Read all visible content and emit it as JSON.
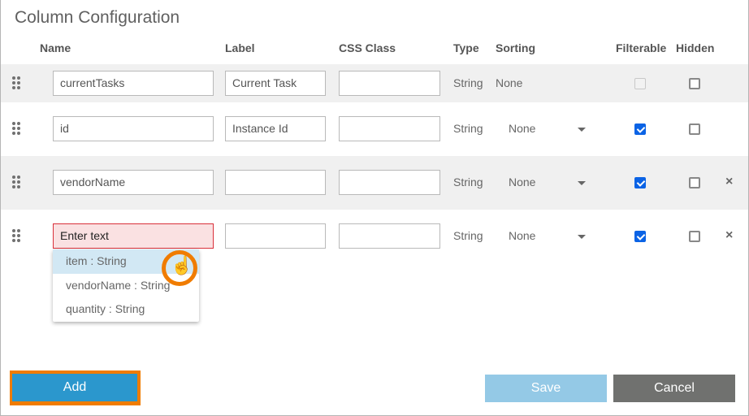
{
  "title": "Column Configuration",
  "headers": {
    "name": "Name",
    "label": "Label",
    "css": "CSS Class",
    "type": "Type",
    "sorting": "Sorting",
    "filterable": "Filterable",
    "hidden": "Hidden"
  },
  "rows": [
    {
      "name": "currentTasks",
      "label": "Current Task",
      "css": "",
      "type": "String",
      "sorting": "None",
      "filterable": false,
      "filterable_disabled": true,
      "hidden": false,
      "removable": false
    },
    {
      "name": "id",
      "label": "Instance Id",
      "css": "",
      "type": "String",
      "sorting": "None",
      "filterable": true,
      "hidden": false,
      "removable": false
    },
    {
      "name": "vendorName",
      "label": "",
      "css": "",
      "type": "String",
      "sorting": "None",
      "filterable": true,
      "hidden": false,
      "removable": true
    },
    {
      "name": "Enter text",
      "label": "",
      "css": "",
      "type": "String",
      "sorting": "None",
      "filterable": true,
      "hidden": false,
      "removable": true
    }
  ],
  "suggestions": [
    "item : String",
    "vendorName : String",
    "quantity : String"
  ],
  "buttons": {
    "add": "Add",
    "save": "Save",
    "cancel": "Cancel"
  },
  "colors": {
    "add": "#2b97cd",
    "save": "#94c9e6",
    "cancel": "#70716f",
    "highlight": "#f07c00",
    "error_bg": "#fae1e2",
    "error_border": "#d9303a"
  }
}
